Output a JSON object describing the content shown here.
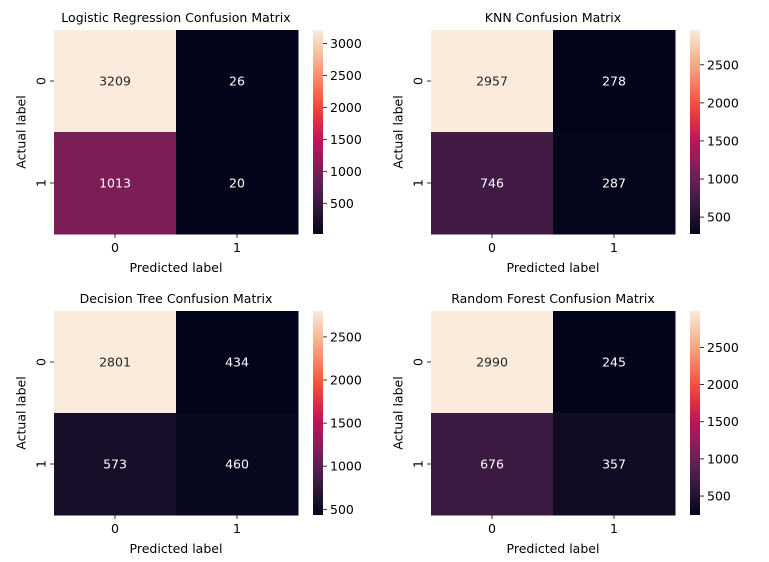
{
  "chart_data": [
    {
      "type": "heatmap",
      "title": "Logistic Regression Confusion Matrix",
      "xlabel": "Predicted label",
      "ylabel": "Actual label",
      "x_categories": [
        "0",
        "1"
      ],
      "y_categories": [
        "0",
        "1"
      ],
      "values": [
        [
          3209,
          26
        ],
        [
          1013,
          20
        ]
      ],
      "colorbar": {
        "min": 20,
        "max": 3209,
        "ticks": [
          500,
          1000,
          1500,
          2000,
          2500,
          3000
        ]
      }
    },
    {
      "type": "heatmap",
      "title": "KNN Confusion Matrix",
      "xlabel": "Predicted label",
      "ylabel": "Actual label",
      "x_categories": [
        "0",
        "1"
      ],
      "y_categories": [
        "0",
        "1"
      ],
      "values": [
        [
          2957,
          278
        ],
        [
          746,
          287
        ]
      ],
      "colorbar": {
        "min": 278,
        "max": 2957,
        "ticks": [
          500,
          1000,
          1500,
          2000,
          2500
        ]
      }
    },
    {
      "type": "heatmap",
      "title": "Decision Tree Confusion Matrix",
      "xlabel": "Predicted label",
      "ylabel": "Actual label",
      "x_categories": [
        "0",
        "1"
      ],
      "y_categories": [
        "0",
        "1"
      ],
      "values": [
        [
          2801,
          434
        ],
        [
          573,
          460
        ]
      ],
      "colorbar": {
        "min": 434,
        "max": 2801,
        "ticks": [
          500,
          1000,
          1500,
          2000,
          2500
        ]
      }
    },
    {
      "type": "heatmap",
      "title": "Random Forest Confusion Matrix",
      "xlabel": "Predicted label",
      "ylabel": "Actual label",
      "x_categories": [
        "0",
        "1"
      ],
      "y_categories": [
        "0",
        "1"
      ],
      "values": [
        [
          2990,
          245
        ],
        [
          676,
          357
        ]
      ],
      "colorbar": {
        "min": 245,
        "max": 2990,
        "ticks": [
          500,
          1000,
          1500,
          2000,
          2500
        ]
      }
    }
  ],
  "colormap": {
    "name": "rocket",
    "stops": [
      "#03051a",
      "#221331",
      "#451c47",
      "#6a1f56",
      "#921c5b",
      "#b91657",
      "#dd2c45",
      "#f0513b",
      "#f47a5b",
      "#f6a47c",
      "#f7c8a9",
      "#faebdd"
    ]
  }
}
